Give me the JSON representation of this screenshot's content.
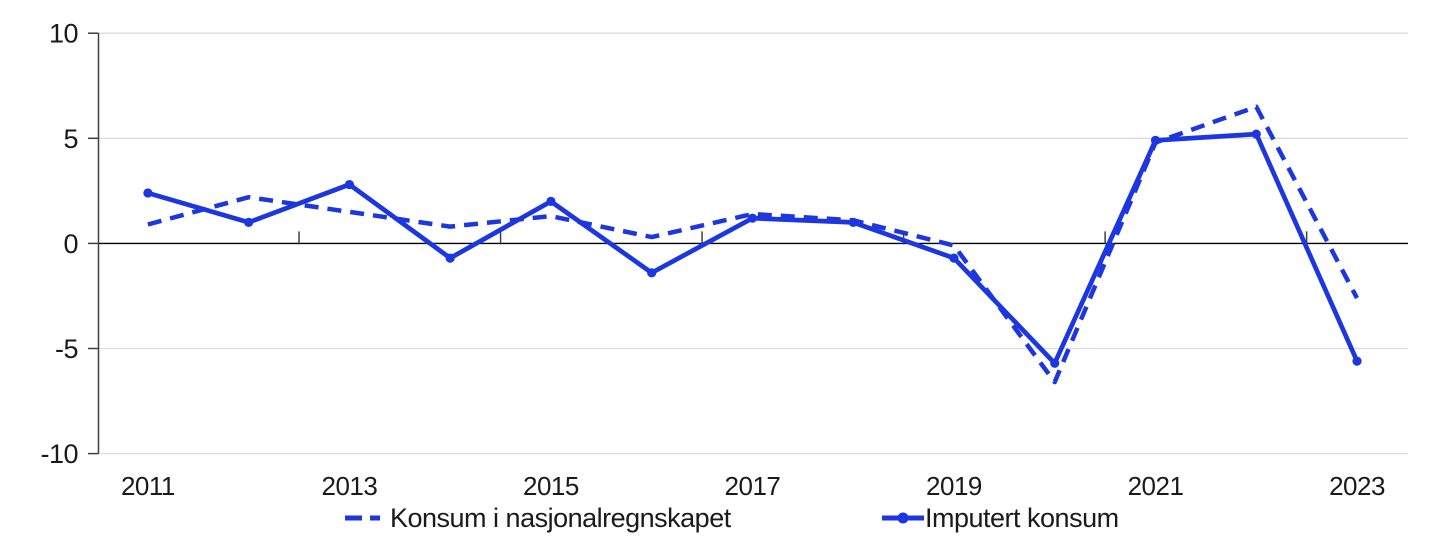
{
  "chart_style": {
    "series_color": "#1c36e0",
    "grid_color": "#dcdcdc",
    "zero_line_color": "#000000",
    "axis_color": "#404040",
    "text_color": "#1a1a1a",
    "background": "#ffffff"
  },
  "chart_data": {
    "type": "line",
    "x": [
      2011,
      2012,
      2013,
      2014,
      2015,
      2016,
      2017,
      2018,
      2019,
      2020,
      2021,
      2022,
      2023
    ],
    "series": [
      {
        "name": "Konsum i nasjonalregnskapet",
        "style": "dashed",
        "values": [
          0.9,
          2.2,
          1.5,
          0.8,
          1.3,
          0.3,
          1.4,
          1.1,
          -0.1,
          -6.6,
          4.8,
          6.5,
          -2.6
        ]
      },
      {
        "name": "Imputert konsum",
        "style": "solid-markers",
        "values": [
          2.4,
          1.0,
          2.8,
          -0.7,
          2.0,
          -1.4,
          1.2,
          1.0,
          -0.7,
          -5.7,
          4.9,
          5.2,
          -5.6
        ]
      }
    ],
    "x_axis": {
      "labels": [
        "2011",
        "2013",
        "2015",
        "2017",
        "2019",
        "2021",
        "2023"
      ],
      "label_positions": [
        0,
        2,
        4,
        6,
        8,
        10,
        12
      ]
    },
    "y_axis": {
      "ticks": [
        10,
        5,
        0,
        -5,
        -10
      ],
      "ylim": [
        -10,
        10
      ]
    },
    "grid": "horizontal",
    "legend_position": "bottom-center",
    "title": "",
    "xlabel": "",
    "ylabel": ""
  }
}
